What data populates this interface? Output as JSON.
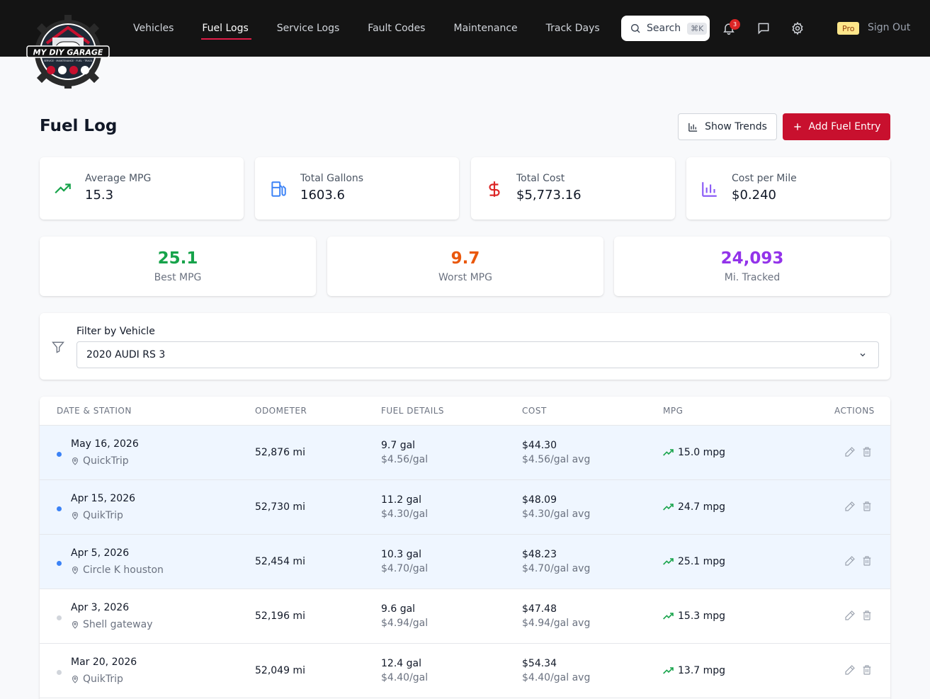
{
  "app": {
    "logo_text": "MY DIY GARAGE",
    "logo_tagline": "SERVICE · MAINTENANCE · FUEL · TRACK"
  },
  "nav": {
    "items": [
      {
        "label": "Vehicles"
      },
      {
        "label": "Fuel Logs",
        "active": true
      },
      {
        "label": "Service Logs"
      },
      {
        "label": "Fault Codes"
      },
      {
        "label": "Maintenance"
      },
      {
        "label": "Track Days"
      }
    ],
    "search_label": "Search",
    "search_shortcut": "⌘K",
    "notification_count": "3",
    "plan_badge": "Pro",
    "signout_label": "Sign Out"
  },
  "page": {
    "title": "Fuel Log",
    "show_trends_label": "Show Trends",
    "add_entry_label": "Add Fuel Entry"
  },
  "stats": [
    {
      "label": "Average MPG",
      "value": "15.3",
      "icon": "trending-up-icon",
      "color": "#16a34a"
    },
    {
      "label": "Total Gallons",
      "value": "1603.6",
      "icon": "fuel-pump-icon",
      "color": "#3b82f6"
    },
    {
      "label": "Total Cost",
      "value": "$5,773.16",
      "icon": "dollar-icon",
      "color": "#dc2626"
    },
    {
      "label": "Cost per Mile",
      "value": "$0.240",
      "icon": "bar-chart-icon",
      "color": "#8b5cf6"
    }
  ],
  "highlights": [
    {
      "value": "25.1",
      "label": "Best MPG",
      "color": "#16a34a"
    },
    {
      "value": "9.7",
      "label": "Worst MPG",
      "color": "#ea580c"
    },
    {
      "value": "24,093",
      "label": "Mi. Tracked",
      "color": "#9333ea"
    }
  ],
  "filter": {
    "label": "Filter by Vehicle",
    "selected": "2020 AUDI RS 3"
  },
  "table": {
    "headers": [
      "DATE & STATION",
      "ODOMETER",
      "FUEL DETAILS",
      "COST",
      "MPG",
      "ACTIONS"
    ],
    "rows": [
      {
        "date": "May 16, 2026",
        "station": "QuickTrip",
        "odometer": "52,876 mi",
        "gallons": "9.7 gal",
        "price": "$4.56/gal",
        "cost": "$44.30",
        "avg": "$4.56/gal avg",
        "mpg": "15.0 mpg",
        "highlighted": true
      },
      {
        "date": "Apr 15, 2026",
        "station": "QuikTrip",
        "odometer": "52,730 mi",
        "gallons": "11.2 gal",
        "price": "$4.30/gal",
        "cost": "$48.09",
        "avg": "$4.30/gal avg",
        "mpg": "24.7 mpg",
        "highlighted": true
      },
      {
        "date": "Apr 5, 2026",
        "station": "Circle K houston",
        "odometer": "52,454 mi",
        "gallons": "10.3 gal",
        "price": "$4.70/gal",
        "cost": "$48.23",
        "avg": "$4.70/gal avg",
        "mpg": "25.1 mpg",
        "highlighted": true
      },
      {
        "date": "Apr 3, 2026",
        "station": "Shell gateway",
        "odometer": "52,196 mi",
        "gallons": "9.6 gal",
        "price": "$4.94/gal",
        "cost": "$47.48",
        "avg": "$4.94/gal avg",
        "mpg": "15.3 mpg",
        "highlighted": false
      },
      {
        "date": "Mar 20, 2026",
        "station": "QuikTrip",
        "odometer": "52,049 mi",
        "gallons": "12.4 gal",
        "price": "$4.40/gal",
        "cost": "$54.34",
        "avg": "$4.40/gal avg",
        "mpg": "13.7 mpg",
        "highlighted": false
      }
    ]
  },
  "colors": {
    "accent": "#c8102e",
    "highlight_row": "#eff6ff",
    "dot_active": "#3b82f6",
    "dot_inactive": "#d1d5db",
    "trend_up": "#16a34a"
  }
}
